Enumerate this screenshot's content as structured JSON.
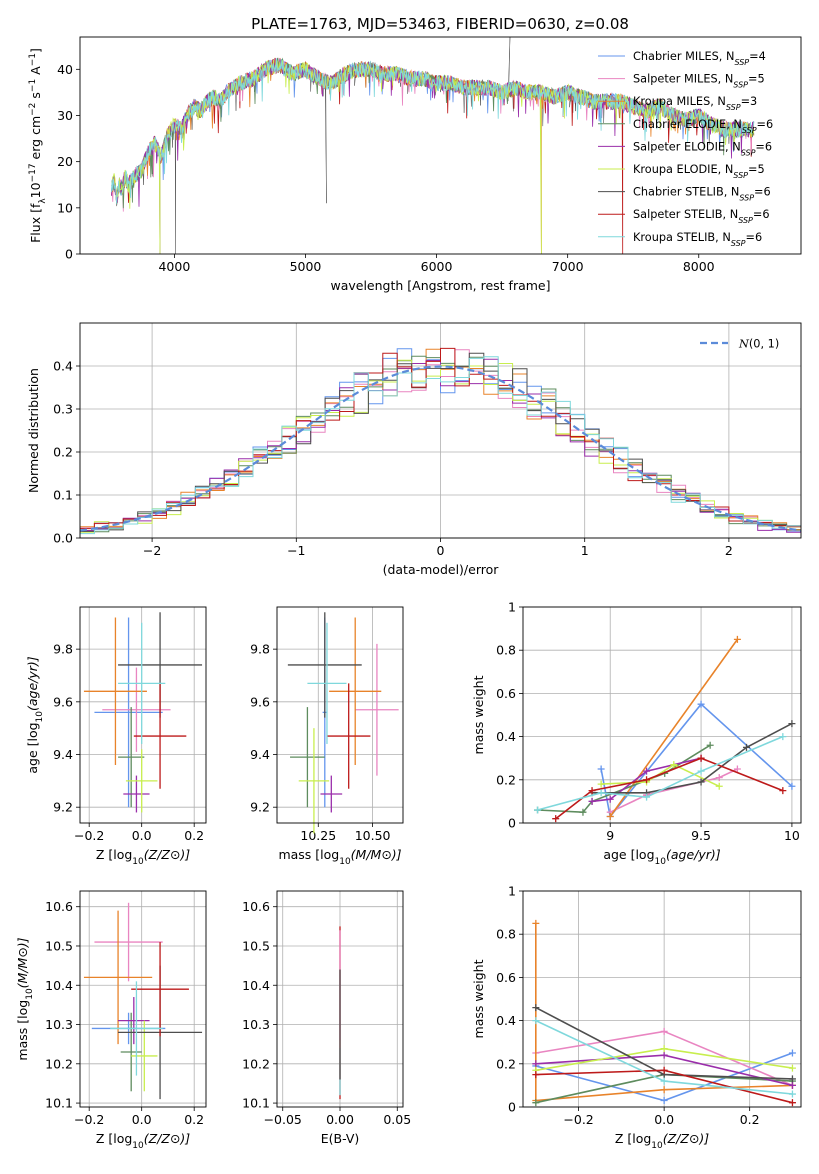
{
  "figure": {
    "title": "PLATE=1763, MJD=53463, FIBERID=0630, z=0.08"
  },
  "models": [
    {
      "name": "Chabrier MILES",
      "nssp": "4",
      "color": "#6495ED"
    },
    {
      "name": "Salpeter MILES",
      "nssp": "5",
      "color": "#E985C1"
    },
    {
      "name": "Kroupa MILES",
      "nssp": "3",
      "color": "#E8832A"
    },
    {
      "name": "Chabrier ELODIE",
      "nssp": "6",
      "color": "#5E8C5E"
    },
    {
      "name": "Salpeter ELODIE",
      "nssp": "6",
      "color": "#9A2EAA"
    },
    {
      "name": "Kroupa ELODIE",
      "nssp": "5",
      "color": "#C8EE4E"
    },
    {
      "name": "Chabrier STELIB",
      "nssp": "6",
      "color": "#4E4E4E"
    },
    {
      "name": "Salpeter STELIB",
      "nssp": "6",
      "color": "#BD1A1A"
    },
    {
      "name": "Kroupa STELIB",
      "nssp": "6",
      "color": "#7FD8DC"
    }
  ],
  "chart_data": [
    {
      "id": "spectrum",
      "type": "line",
      "xlabel": "wavelength [Angstrom, rest frame]",
      "ylabel": "Flux [f_λ 10^-17 erg cm^-2 s^-1 A^-1]",
      "xlim": [
        3280,
        8780
      ],
      "ylim": [
        0,
        47
      ],
      "xticks": [
        4000,
        5000,
        6000,
        7000,
        8000
      ],
      "yticks": [
        0,
        10,
        20,
        30,
        40
      ],
      "spectrum_x": [
        3520,
        3540,
        3560,
        3580,
        3600,
        3620,
        3650,
        3700,
        3750,
        3800,
        3850,
        3900,
        3950,
        4000,
        4050,
        4100,
        4150,
        4200,
        4250,
        4300,
        4350,
        4400,
        4450,
        4500,
        4600,
        4700,
        4800,
        4900,
        5000,
        5100,
        5200,
        5300,
        5400,
        5500,
        5600,
        5700,
        5800,
        5900,
        6000,
        6100,
        6200,
        6300,
        6400,
        6500,
        6600,
        6700,
        6800,
        6900,
        7000,
        7100,
        7200,
        7300,
        7400,
        7500,
        7600,
        7700,
        7800,
        7900,
        8000,
        8100,
        8200,
        8300,
        8400
      ],
      "spectrum_y": [
        14,
        16,
        12,
        15,
        14,
        17,
        15,
        17,
        18,
        22,
        24,
        21,
        26,
        28,
        27,
        30,
        32,
        31,
        33,
        34,
        33,
        35,
        36,
        37,
        38,
        40,
        41,
        39,
        40,
        38,
        37,
        39,
        40,
        40,
        39,
        39,
        38,
        38,
        37,
        37,
        36,
        36,
        36,
        35,
        36,
        35,
        35,
        34,
        35,
        34,
        33,
        33,
        33,
        32,
        31,
        32,
        30,
        29,
        30,
        28,
        27,
        27,
        27
      ],
      "grid": false,
      "legend_position": "upper right"
    },
    {
      "id": "residuals",
      "type": "line",
      "xlabel": "(data-model)/error",
      "ylabel": "Normed distribution",
      "xlim": [
        -2.5,
        2.5
      ],
      "ylim": [
        0,
        0.5
      ],
      "xticks": [
        -2,
        -1,
        0,
        1,
        2
      ],
      "xtick_labels": [
        "−2",
        "−1",
        "0",
        "1",
        "2"
      ],
      "yticks": [
        0.0,
        0.1,
        0.2,
        0.3,
        0.4
      ],
      "ytick_labels": [
        "0.0",
        "0.1",
        "0.2",
        "0.3",
        "0.4"
      ],
      "grid": true,
      "legend_position": "upper right",
      "gaussian_label": "N(0,1)",
      "hist_bin_width": 0.1,
      "hist_bin_start": -2.5
    },
    {
      "id": "age_vs_Z",
      "type": "scatter",
      "xlabel": "Z [log10(Z/Z⊙)]",
      "ylabel": "age [log10(age/yr)]",
      "xlim": [
        -0.235,
        0.245
      ],
      "ylim": [
        9.14,
        9.96
      ],
      "xticks": [
        -0.2,
        0.0,
        0.2
      ],
      "xtick_labels": [
        "−0.2",
        "0.0",
        "0.2"
      ],
      "yticks": [
        9.2,
        9.4,
        9.6,
        9.8
      ],
      "grid": true,
      "points": [
        {
          "x": -0.05,
          "xerr": 0.13,
          "y": 9.56,
          "yerr": 0.36
        },
        {
          "x": -0.02,
          "xerr": 0.13,
          "y": 9.57,
          "yerr": 0.16
        },
        {
          "x": -0.1,
          "xerr": 0.12,
          "y": 9.64,
          "yerr": 0.28
        },
        {
          "x": -0.04,
          "xerr": 0.05,
          "y": 9.39,
          "yerr": 0.19
        },
        {
          "x": -0.02,
          "xerr": 0.05,
          "y": 9.25,
          "yerr": 0.07
        },
        {
          "x": 0.0,
          "xerr": 0.06,
          "y": 9.3,
          "yerr": 0.12
        },
        {
          "x": 0.07,
          "xerr": 0.16,
          "y": 9.74,
          "yerr": 0.2
        },
        {
          "x": 0.07,
          "xerr": 0.1,
          "y": 9.47,
          "yerr": 0.2
        },
        {
          "x": 0.0,
          "xerr": 0.09,
          "y": 9.67,
          "yerr": 0.23
        }
      ]
    },
    {
      "id": "age_vs_mass",
      "type": "scatter",
      "xlabel": "mass [log10(M/M⊙)]",
      "ylabel": "",
      "xlim": [
        10.06,
        10.64
      ],
      "ylim": [
        9.14,
        9.96
      ],
      "xticks": [
        10.25,
        10.5
      ],
      "xtick_labels": [
        "10.25",
        "10.50"
      ],
      "yticks": [
        9.2,
        9.4,
        9.6,
        9.8
      ],
      "grid": true,
      "points": [
        {
          "x": 10.28,
          "xerr": 0.01,
          "y": 9.56,
          "yerr": 0.36
        },
        {
          "x": 10.52,
          "xerr": 0.1,
          "y": 9.57,
          "yerr": 0.25
        },
        {
          "x": 10.42,
          "xerr": 0.12,
          "y": 9.64,
          "yerr": 0.28
        },
        {
          "x": 10.2,
          "xerr": 0.08,
          "y": 9.39,
          "yerr": 0.19
        },
        {
          "x": 10.31,
          "xerr": 0.05,
          "y": 9.25,
          "yerr": 0.07
        },
        {
          "x": 10.23,
          "xerr": 0.07,
          "y": 9.3,
          "yerr": 0.2
        },
        {
          "x": 10.28,
          "xerr": 0.17,
          "y": 9.74,
          "yerr": 0.2
        },
        {
          "x": 10.39,
          "xerr": 0.1,
          "y": 9.47,
          "yerr": 0.2
        },
        {
          "x": 10.29,
          "xerr": 0.09,
          "y": 9.67,
          "yerr": 0.23
        }
      ]
    },
    {
      "id": "weight_vs_age",
      "type": "line",
      "xlabel": "age [log10(age/yr)]",
      "ylabel": "mass weight",
      "xlim": [
        8.52,
        10.05
      ],
      "ylim": [
        0,
        1
      ],
      "xticks": [
        9.0,
        9.5,
        10.0
      ],
      "yticks": [
        0.0,
        0.2,
        0.4,
        0.6,
        0.8,
        1.0
      ],
      "grid": true,
      "series": [
        {
          "x": [
            8.95,
            9.0,
            9.5,
            10.0
          ],
          "y": [
            0.25,
            0.03,
            0.55,
            0.17
          ]
        },
        {
          "x": [
            9.0,
            9.2,
            9.6,
            9.7
          ],
          "y": [
            0.05,
            0.13,
            0.21,
            0.25
          ]
        },
        {
          "x": [
            9.0,
            9.7
          ],
          "y": [
            0.03,
            0.85
          ]
        },
        {
          "x": [
            8.6,
            8.85,
            8.9,
            9.3,
            9.55
          ],
          "y": [
            0.06,
            0.05,
            0.1,
            0.23,
            0.36
          ]
        },
        {
          "x": [
            8.9,
            9.0,
            9.2,
            9.5
          ],
          "y": [
            0.1,
            0.11,
            0.24,
            0.3
          ]
        },
        {
          "x": [
            8.95,
            9.2,
            9.35,
            9.6
          ],
          "y": [
            0.18,
            0.19,
            0.27,
            0.17
          ]
        },
        {
          "x": [
            8.9,
            9.2,
            9.5,
            9.75,
            10.0
          ],
          "y": [
            0.14,
            0.14,
            0.19,
            0.35,
            0.46
          ]
        },
        {
          "x": [
            8.7,
            8.9,
            9.2,
            9.5,
            9.95
          ],
          "y": [
            0.02,
            0.15,
            0.2,
            0.3,
            0.15
          ]
        },
        {
          "x": [
            8.6,
            8.95,
            9.2,
            9.5,
            9.95
          ],
          "y": [
            0.06,
            0.14,
            0.12,
            0.24,
            0.4
          ]
        }
      ]
    },
    {
      "id": "mass_vs_Z",
      "type": "scatter",
      "xlabel": "Z [log10(Z/Z⊙)]",
      "ylabel": "mass [log10(M/M⊙)]",
      "xlim": [
        -0.235,
        0.245
      ],
      "ylim": [
        10.09,
        10.64
      ],
      "xticks": [
        -0.2,
        0.0,
        0.2
      ],
      "xtick_labels": [
        "−0.2",
        "0.0",
        "0.2"
      ],
      "yticks": [
        10.1,
        10.2,
        10.3,
        10.4,
        10.5,
        10.6
      ],
      "grid": true,
      "points": [
        {
          "x": -0.05,
          "xerr": 0.14,
          "y": 10.29,
          "yerr": 0.04
        },
        {
          "x": -0.05,
          "xerr": 0.13,
          "y": 10.51,
          "yerr": 0.1
        },
        {
          "x": -0.09,
          "xerr": 0.13,
          "y": 10.42,
          "yerr": 0.17
        },
        {
          "x": -0.04,
          "xerr": 0.04,
          "y": 10.23,
          "yerr": 0.1
        },
        {
          "x": -0.03,
          "xerr": 0.06,
          "y": 10.31,
          "yerr": 0.06
        },
        {
          "x": 0.01,
          "xerr": 0.05,
          "y": 10.22,
          "yerr": 0.09
        },
        {
          "x": 0.07,
          "xerr": 0.16,
          "y": 10.28,
          "yerr": 0.17
        },
        {
          "x": 0.07,
          "xerr": 0.11,
          "y": 10.39,
          "yerr": 0.12
        },
        {
          "x": -0.02,
          "xerr": 0.1,
          "y": 10.29,
          "yerr": 0.12
        }
      ]
    },
    {
      "id": "mass_vs_ebv",
      "type": "scatter",
      "xlabel": "E(B-V)",
      "ylabel": "",
      "xlim": [
        -0.055,
        0.055
      ],
      "ylim": [
        10.09,
        10.64
      ],
      "xticks": [
        -0.05,
        0.0,
        0.05
      ],
      "xtick_labels": [
        "−0.05",
        "0.00",
        "0.05"
      ],
      "yticks": [
        10.1,
        10.2,
        10.3,
        10.4,
        10.5,
        10.6
      ],
      "grid": true,
      "points": [
        {
          "x": 0.0,
          "xerr": 0.0,
          "y": 10.33,
          "yerr": 0.22
        },
        {
          "x": 0.0,
          "xerr": 0.0,
          "y": 10.4,
          "yerr": 0.14
        },
        {
          "x": 0.0,
          "xerr": 0.0,
          "y": 10.18,
          "yerr": 0.06
        },
        {
          "x": 0.0,
          "xerr": 0.0,
          "y": 10.3,
          "yerr": 0.14
        }
      ]
    },
    {
      "id": "weight_vs_Z",
      "type": "line",
      "xlabel": "Z [log10(Z/Z⊙)]",
      "ylabel": "mass weight",
      "xlim": [
        -0.33,
        0.32
      ],
      "ylim": [
        0,
        1
      ],
      "xticks": [
        -0.2,
        0.0,
        0.2
      ],
      "xtick_labels": [
        "−0.2",
        "0.0",
        "0.2"
      ],
      "yticks": [
        0.0,
        0.2,
        0.4,
        0.6,
        0.8,
        1.0
      ],
      "grid": true,
      "series": [
        {
          "x": [
            -0.3,
            0.0,
            0.3
          ],
          "y": [
            0.19,
            0.03,
            0.25
          ]
        },
        {
          "x": [
            -0.3,
            0.0,
            0.3
          ],
          "y": [
            0.25,
            0.35,
            0.1
          ]
        },
        {
          "x": [
            -0.3,
            -0.3,
            0.0,
            0.3
          ],
          "y": [
            0.85,
            0.03,
            0.08,
            0.1
          ]
        },
        {
          "x": [
            -0.3,
            0.0,
            0.3
          ],
          "y": [
            0.02,
            0.15,
            0.12
          ]
        },
        {
          "x": [
            -0.3,
            0.0,
            0.3
          ],
          "y": [
            0.2,
            0.24,
            0.1
          ]
        },
        {
          "x": [
            -0.3,
            0.0,
            0.3
          ],
          "y": [
            0.17,
            0.27,
            0.18
          ]
        },
        {
          "x": [
            -0.3,
            0.0,
            0.3
          ],
          "y": [
            0.46,
            0.15,
            0.13
          ]
        },
        {
          "x": [
            -0.3,
            0.0,
            0.3
          ],
          "y": [
            0.15,
            0.17,
            0.02
          ]
        },
        {
          "x": [
            -0.3,
            0.0,
            0.3
          ],
          "y": [
            0.4,
            0.12,
            0.06
          ]
        }
      ]
    }
  ]
}
